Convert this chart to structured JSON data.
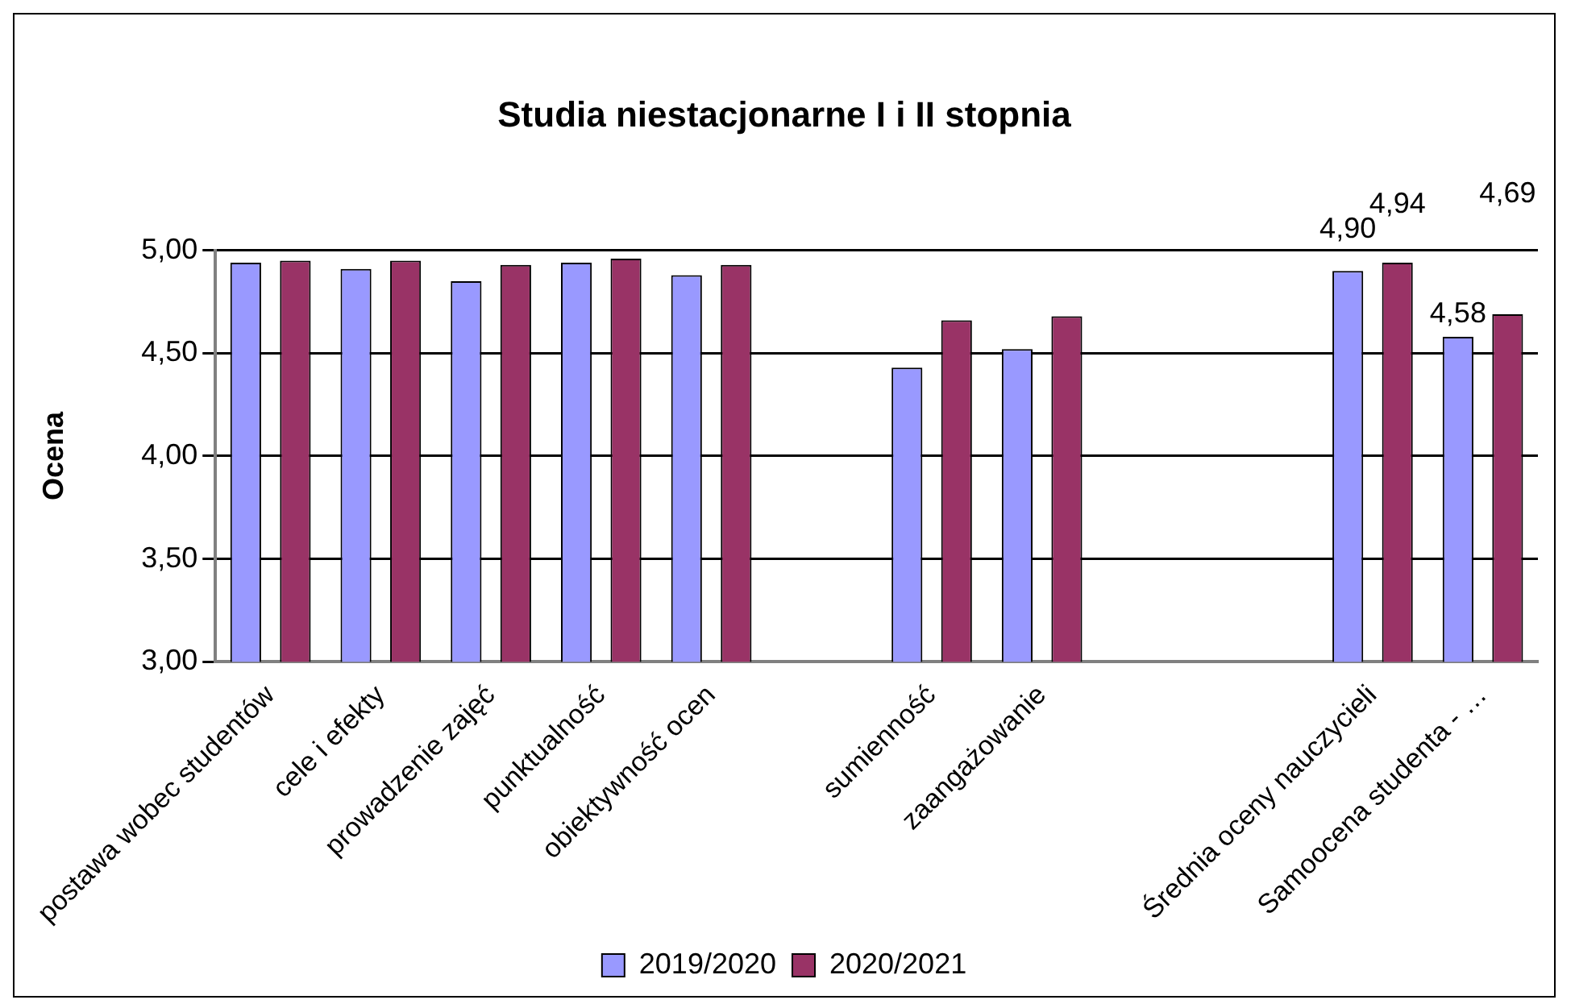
{
  "chart_data": {
    "type": "bar",
    "title": "Studia niestacjonarne I i II stopnia",
    "ylabel": "Ocena",
    "categories": [
      "postawa wobec studentów",
      "cele i efekty",
      "prowadzenie zajęć",
      "punktualność",
      "obiektywność ocen",
      null,
      "sumienność",
      "zaangażowanie",
      null,
      null,
      "Średnia oceny nauczycieli",
      "Samoocena studenta - …"
    ],
    "series": [
      {
        "name": "2019/2020",
        "color": "#9999ff",
        "values": [
          4.94,
          4.91,
          4.85,
          4.94,
          4.88,
          null,
          4.43,
          4.52,
          null,
          null,
          4.9,
          4.58
        ],
        "value_labels": [
          null,
          null,
          null,
          null,
          null,
          null,
          null,
          null,
          null,
          null,
          "4,90",
          "4,58"
        ]
      },
      {
        "name": "2020/2021",
        "color": "#993366",
        "values": [
          4.95,
          4.95,
          4.93,
          4.96,
          4.93,
          null,
          4.66,
          4.68,
          null,
          null,
          4.94,
          4.69
        ],
        "value_labels": [
          null,
          null,
          null,
          null,
          null,
          null,
          null,
          null,
          null,
          null,
          "4,94",
          "4,69"
        ]
      }
    ],
    "ylim": [
      3,
      5
    ],
    "yticks": [
      {
        "value": 3,
        "label": "3,00"
      },
      {
        "value": 3.5,
        "label": "3,50"
      },
      {
        "value": 4,
        "label": "4,00"
      },
      {
        "value": 4.5,
        "label": "4,50"
      },
      {
        "value": 5,
        "label": "5,00"
      }
    ],
    "grid": "y",
    "legend": "bottom"
  }
}
